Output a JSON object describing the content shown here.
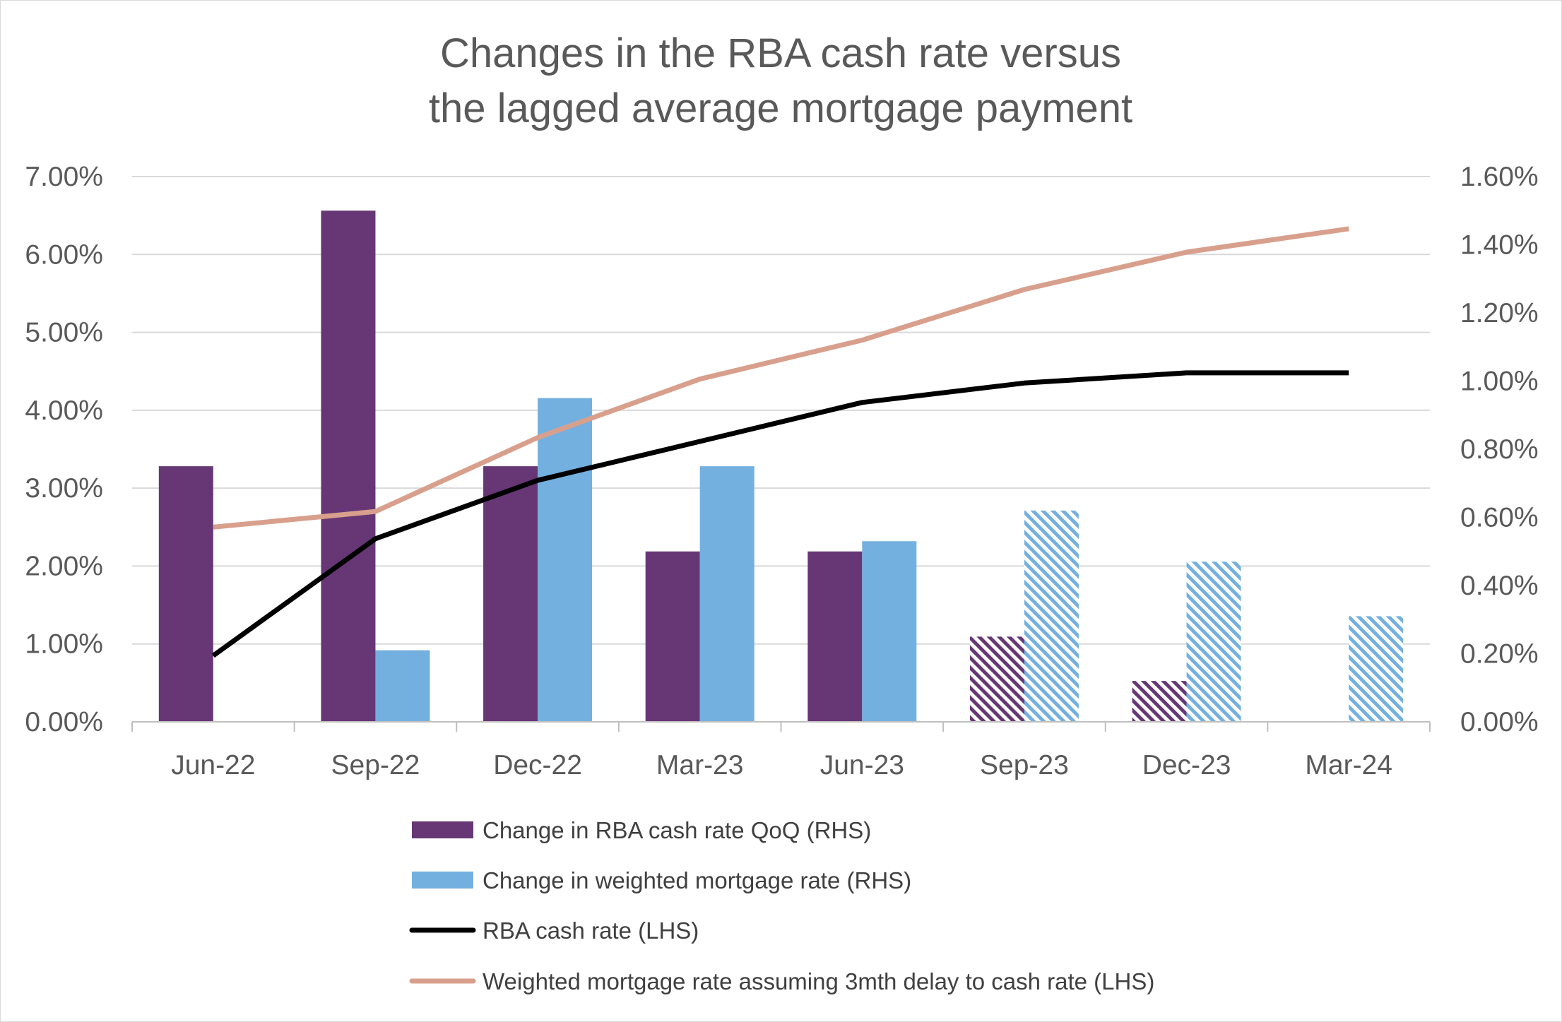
{
  "chart_data": {
    "type": "bar",
    "title_lines": [
      "Changes in the RBA cash rate versus",
      "the lagged average mortgage payment"
    ],
    "categories": [
      "Jun-22",
      "Sep-22",
      "Dec-22",
      "Mar-23",
      "Jun-23",
      "Sep-23",
      "Dec-23",
      "Mar-24"
    ],
    "left_axis": {
      "ticks": [
        "0.00%",
        "1.00%",
        "2.00%",
        "3.00%",
        "4.00%",
        "5.00%",
        "6.00%",
        "7.00%"
      ],
      "ylim": [
        0,
        7.0
      ]
    },
    "right_axis": {
      "ticks": [
        "0.00%",
        "0.20%",
        "0.40%",
        "0.60%",
        "0.80%",
        "1.00%",
        "1.20%",
        "1.40%",
        "1.60%"
      ],
      "ylim": [
        0,
        1.6
      ]
    },
    "grid": true,
    "legend_position": "bottom",
    "series": [
      {
        "name": "Change in RBA cash rate QoQ (RHS)",
        "kind": "bar",
        "axis": "right",
        "color": "#673775",
        "values": [
          0.75,
          1.5,
          0.75,
          0.5,
          0.5,
          0.25,
          0.12,
          null
        ],
        "forecast_from_index": 5
      },
      {
        "name": "Change in weighted mortgage rate (RHS)",
        "kind": "bar",
        "axis": "right",
        "color": "#74b0df",
        "values": [
          null,
          0.21,
          0.95,
          0.75,
          0.53,
          0.62,
          0.47,
          0.31
        ],
        "forecast_from_index": 5
      },
      {
        "name": "RBA cash rate (LHS)",
        "kind": "line",
        "axis": "left",
        "color": "#000000",
        "values": [
          0.85,
          2.35,
          3.1,
          3.6,
          4.1,
          4.35,
          4.48,
          4.48
        ]
      },
      {
        "name": "Weighted mortgage rate assuming 3mth delay to cash rate (LHS)",
        "kind": "line",
        "axis": "left",
        "color": "#d8a08c",
        "values": [
          2.5,
          2.7,
          3.65,
          4.4,
          4.9,
          5.55,
          6.03,
          6.33
        ]
      }
    ]
  }
}
